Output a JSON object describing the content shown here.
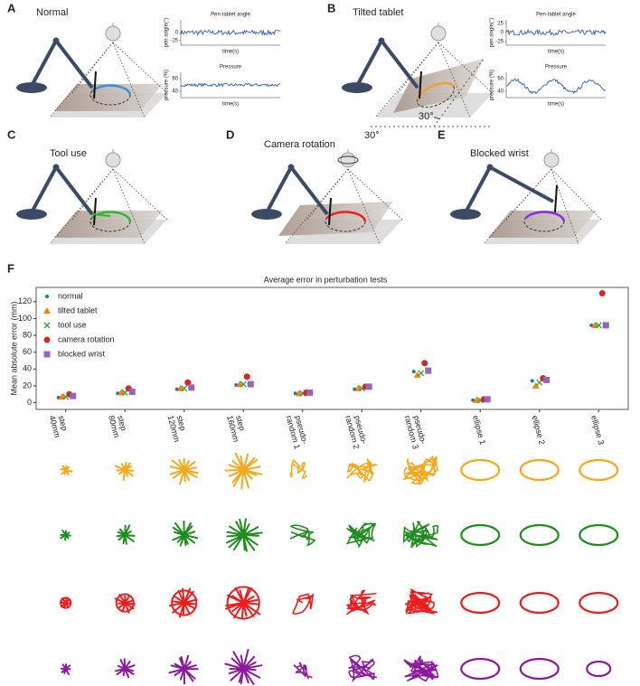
{
  "panels": [
    {
      "letter": "A",
      "title": "Normal"
    },
    {
      "letter": "B",
      "title": "Tilted tablet",
      "angle": "30°"
    },
    {
      "letter": "C",
      "title": "Tool use"
    },
    {
      "letter": "D",
      "title": "Camera rotation",
      "angle": "30°"
    },
    {
      "letter": "E",
      "title": "Blocked wrist"
    }
  ],
  "mini_charts": [
    {
      "title": "Pen-tablet angle",
      "ylabel": "pen angle(°)",
      "xlabel": "time(s)",
      "ylim": [
        -40,
        40
      ],
      "yticks": [
        0,
        -25
      ]
    },
    {
      "title": "Pressure",
      "ylabel": "pressure (%)",
      "xlabel": "time(s)",
      "ylim": [
        30,
        70
      ],
      "yticks": [
        60,
        40
      ]
    },
    {
      "title": "Pen-tablet angle",
      "ylabel": "pen angle(°)",
      "xlabel": "time(s)",
      "ylim": [
        -35,
        35
      ],
      "yticks": [
        25,
        0,
        -25
      ]
    },
    {
      "title": "Pressure",
      "ylabel": "pressure (%)",
      "xlabel": "time(s)",
      "ylim": [
        30,
        70
      ],
      "yticks": [
        60,
        40
      ]
    }
  ],
  "chart_data": {
    "type": "scatter",
    "letter": "F",
    "title": "Average error in perturbation tests",
    "ylabel": "Mean absolute error (mm)",
    "categories": [
      [
        "step",
        "40mm"
      ],
      [
        "step",
        "80mm"
      ],
      [
        "step",
        "120mm"
      ],
      [
        "step",
        "160mm"
      ],
      [
        "pseudo-",
        "random 1"
      ],
      [
        "pseudo-",
        "random 2"
      ],
      [
        "pseudo-",
        "random 3"
      ],
      [
        "ellipse 1"
      ],
      [
        "ellipse 2"
      ],
      [
        "ellipse 3"
      ]
    ],
    "series": [
      {
        "name": "normal",
        "color": "#1f77b4",
        "marker": "dot",
        "values": [
          6,
          11,
          16,
          21,
          11,
          16,
          37,
          3,
          26,
          92
        ]
      },
      {
        "name": "tilted tablet",
        "color": "#ff7f0e",
        "marker": "triangle",
        "values": [
          7,
          12,
          17,
          22,
          11,
          17,
          33,
          3,
          20,
          92
        ]
      },
      {
        "name": "tool use",
        "color": "#2ca02c",
        "marker": "x",
        "values": [
          7,
          12,
          17,
          22,
          11,
          17,
          35,
          3,
          24,
          92
        ]
      },
      {
        "name": "camera rotation",
        "color": "#d62728",
        "marker": "circle",
        "values": [
          10,
          17,
          24,
          31,
          12,
          19,
          47,
          4,
          29,
          130
        ]
      },
      {
        "name": "blocked wrist",
        "color": "#9467bd",
        "marker": "square",
        "values": [
          8,
          13,
          18,
          22,
          12,
          19,
          38,
          4,
          27,
          92
        ]
      }
    ],
    "ylim": [
      -8,
      137
    ],
    "yticks": [
      0,
      20,
      40,
      60,
      80,
      100,
      120
    ],
    "legend": "upper left"
  }
}
